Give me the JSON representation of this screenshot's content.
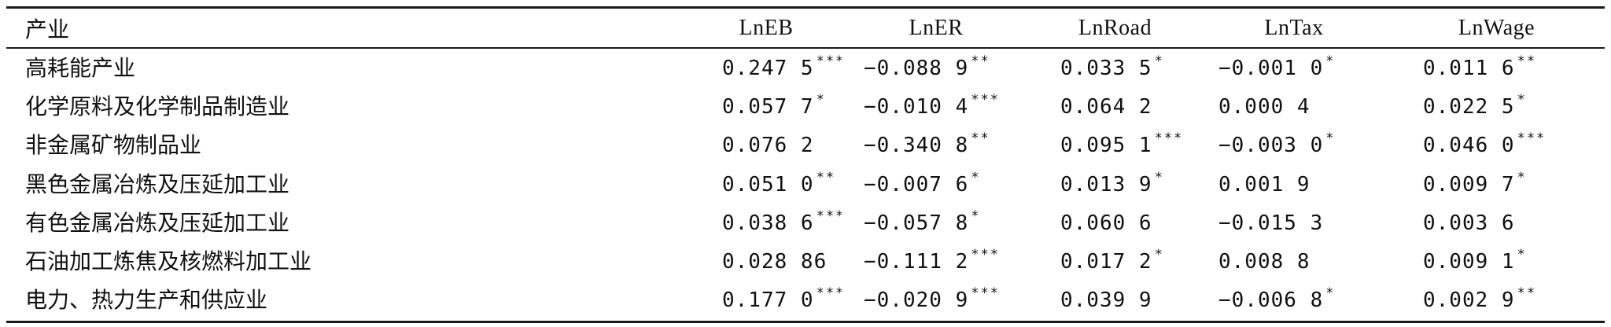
{
  "table": {
    "headers": [
      "产业",
      "LnEB",
      "LnER",
      "LnRoad",
      "LnTax",
      "LnWage"
    ],
    "rows": [
      {
        "name": "高耗能产业",
        "cells": [
          [
            "0.247 5",
            "***"
          ],
          [
            "−0.088 9",
            "**"
          ],
          [
            "0.033 5",
            "*"
          ],
          [
            "−0.001 0",
            "*"
          ],
          [
            "0.011 6",
            "**"
          ]
        ]
      },
      {
        "name": "化学原料及化学制品制造业",
        "cells": [
          [
            "0.057 7",
            "*"
          ],
          [
            "−0.010 4",
            "***"
          ],
          [
            "0.064 2",
            ""
          ],
          [
            "0.000 4",
            ""
          ],
          [
            "0.022 5",
            "*"
          ]
        ]
      },
      {
        "name": "非金属矿物制品业",
        "cells": [
          [
            "0.076 2",
            ""
          ],
          [
            "−0.340 8",
            "**"
          ],
          [
            "0.095 1",
            "***"
          ],
          [
            "−0.003 0",
            "*"
          ],
          [
            "0.046 0",
            "***"
          ]
        ]
      },
      {
        "name": "黑色金属冶炼及压延加工业",
        "cells": [
          [
            "0.051 0",
            "**"
          ],
          [
            "−0.007 6",
            "*"
          ],
          [
            "0.013 9",
            "*"
          ],
          [
            "0.001 9",
            ""
          ],
          [
            "0.009 7",
            "*"
          ]
        ]
      },
      {
        "name": "有色金属冶炼及压延加工业",
        "cells": [
          [
            "0.038 6",
            "***"
          ],
          [
            "−0.057 8",
            "*"
          ],
          [
            "0.060 6",
            ""
          ],
          [
            "−0.015 3",
            ""
          ],
          [
            "0.003 6",
            ""
          ]
        ]
      },
      {
        "name": "石油加工炼焦及核燃料加工业",
        "cells": [
          [
            "0.028 86",
            ""
          ],
          [
            "−0.111 2",
            "***"
          ],
          [
            "0.017 2",
            "*"
          ],
          [
            "0.008 8",
            ""
          ],
          [
            "0.009 1",
            "*"
          ]
        ]
      },
      {
        "name": "电力、热力生产和供应业",
        "cells": [
          [
            "0.177 0",
            "***"
          ],
          [
            "−0.020 9",
            "***"
          ],
          [
            "0.039 9",
            ""
          ],
          [
            "−0.006 8",
            "*"
          ],
          [
            "0.002 9",
            "**"
          ]
        ]
      }
    ]
  }
}
